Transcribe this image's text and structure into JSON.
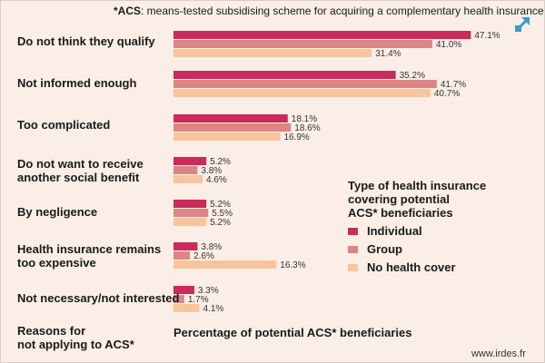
{
  "note": {
    "bold": "*ACS",
    "rest": ": means-tested subsidising scheme for acquiring a complementary health insurance"
  },
  "expand_icon": "expand-arrow-icon",
  "footer": {
    "reasons_line1": "Reasons for",
    "reasons_line2": "not applying to ACS*",
    "axis_caption": "Percentage of potential ACS* beneficiaries",
    "source": "www.irdes.fr"
  },
  "legend": {
    "title_line1": "Type of health insurance",
    "title_line2": "covering potential",
    "title_line3": "ACS* beneficiaries"
  },
  "chart_data": {
    "type": "bar",
    "orientation": "horizontal",
    "categories": [
      [
        "Do not think they qualify"
      ],
      [
        "Not informed enough"
      ],
      [
        "Too complicated"
      ],
      [
        "Do not want to receive",
        "another social benefit"
      ],
      [
        "By negligence"
      ],
      [
        "Health insurance remains",
        "too expensive"
      ],
      [
        "Not necessary/not interested"
      ]
    ],
    "series": [
      {
        "name": "Individual",
        "color": "#cc2a5a",
        "values": [
          47.1,
          35.2,
          18.1,
          5.2,
          5.2,
          3.8,
          3.3
        ]
      },
      {
        "name": "Group",
        "color": "#dc8585",
        "values": [
          41.0,
          41.7,
          18.6,
          3.8,
          5.5,
          2.6,
          1.7
        ]
      },
      {
        "name": "No health cover",
        "color": "#f8c49e",
        "values": [
          31.4,
          40.7,
          16.9,
          4.6,
          5.2,
          16.3,
          4.1
        ]
      }
    ],
    "value_labels": [
      [
        "47.1%",
        "35.2%",
        "18.1%",
        "5.2%",
        "5.2%",
        "3.8%",
        "3.3%"
      ],
      [
        "41.0%",
        "41.7%",
        "18.6%",
        "3.8%",
        "5.5%",
        "2.6%",
        "1.7%"
      ],
      [
        "31.4%",
        "40.7%",
        "16.9%",
        "4.6%",
        "5.2%",
        "16.3%",
        "4.1%"
      ]
    ],
    "xlabel": "Percentage of potential ACS* beneficiaries",
    "ylabel": "Reasons for not applying to ACS*",
    "xlim": [
      0,
      50
    ],
    "grid": false,
    "legend_position": "right"
  }
}
